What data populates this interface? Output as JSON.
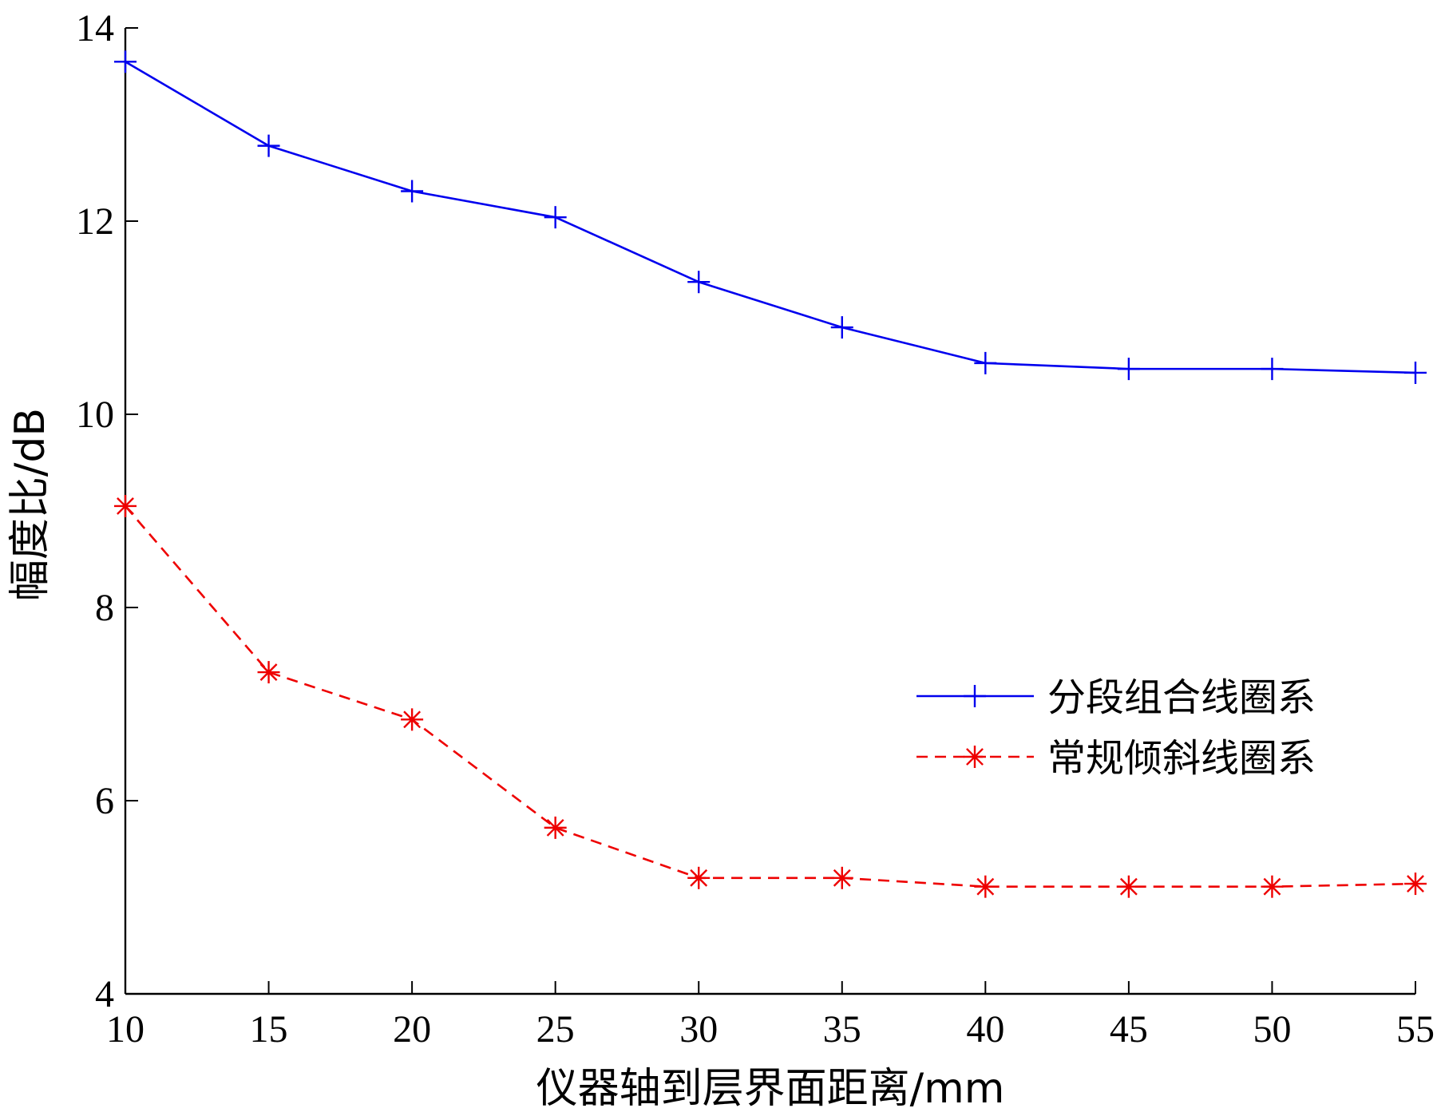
{
  "chart_data": {
    "type": "line",
    "xlabel": "仪器轴到层界面距离/mm",
    "ylabel": "幅度比/dB",
    "x": [
      10,
      15,
      20,
      25,
      30,
      35,
      40,
      45,
      50,
      55
    ],
    "xlim": [
      10,
      55
    ],
    "ylim": [
      4,
      14
    ],
    "xticks": [
      10,
      15,
      20,
      25,
      30,
      35,
      40,
      45,
      50,
      55
    ],
    "yticks": [
      4,
      6,
      8,
      10,
      12,
      14
    ],
    "grid": false,
    "legend_position": "right-middle",
    "series": [
      {
        "name": "分段组合线圈系",
        "color": "#0000ee",
        "line_style": "solid",
        "marker": "plus",
        "values": [
          13.65,
          12.78,
          12.31,
          12.04,
          11.37,
          10.9,
          10.53,
          10.47,
          10.47,
          10.43
        ]
      },
      {
        "name": "常规倾斜线圈系",
        "color": "#ee0000",
        "line_style": "dashed",
        "marker": "asterisk",
        "values": [
          9.05,
          7.33,
          6.84,
          5.72,
          5.2,
          5.2,
          5.11,
          5.11,
          5.11,
          5.14
        ]
      }
    ]
  }
}
